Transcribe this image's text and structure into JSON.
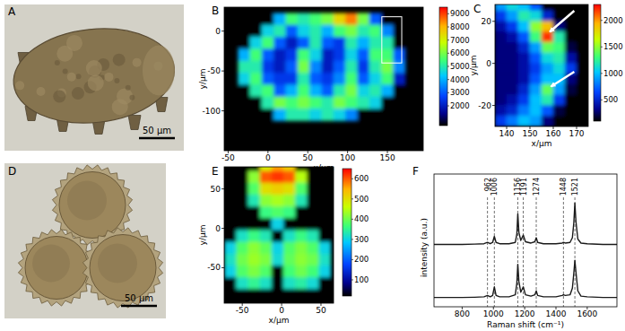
{
  "chart_data": [
    {
      "type": "photo",
      "panel_label": "A",
      "scale_bar_label": "50 μm"
    },
    {
      "type": "heatmap",
      "panel_label": "B",
      "x_label": "x/μm",
      "y_label": "y/μm",
      "xlim": [
        -55,
        195
      ],
      "ylim": [
        -150,
        30
      ],
      "xticks": [
        -50,
        0,
        50,
        100,
        150
      ],
      "yticks": [
        -100,
        -50,
        0
      ],
      "x": [
        -30,
        -15,
        0,
        15,
        30,
        45,
        60,
        75,
        90,
        105,
        120,
        135,
        150,
        165
      ],
      "y": [
        15,
        0,
        -15,
        -30,
        -45,
        -60,
        -75,
        -90,
        -105
      ],
      "z": [
        [
          500,
          500,
          500,
          4000,
          5500,
          5000,
          5500,
          6000,
          7500,
          8500,
          6000,
          3000,
          500,
          500
        ],
        [
          500,
          500,
          4500,
          5000,
          3000,
          4500,
          5000,
          4000,
          5500,
          6000,
          5000,
          5500,
          3500,
          500
        ],
        [
          500,
          4500,
          5500,
          3000,
          2000,
          3000,
          5000,
          3000,
          2500,
          5000,
          4000,
          5000,
          5000,
          500
        ],
        [
          4000,
          5500,
          3000,
          2000,
          2500,
          5500,
          4500,
          2000,
          2500,
          4500,
          3000,
          5500,
          5500,
          3000
        ],
        [
          5000,
          5000,
          2500,
          2000,
          3000,
          6000,
          3500,
          2000,
          3000,
          5000,
          2500,
          5000,
          6000,
          3500
        ],
        [
          4500,
          5500,
          3000,
          2500,
          2500,
          5000,
          3000,
          2500,
          3500,
          5500,
          3000,
          4500,
          5500,
          2000
        ],
        [
          500,
          5000,
          5500,
          3000,
          4000,
          5500,
          4000,
          3000,
          5000,
          6000,
          4500,
          5000,
          4000,
          500
        ],
        [
          500,
          500,
          5000,
          6000,
          5500,
          6000,
          5500,
          5000,
          6000,
          5500,
          5000,
          4500,
          500,
          500
        ],
        [
          500,
          500,
          500,
          4000,
          5000,
          5000,
          4500,
          5000,
          4500,
          3500,
          500,
          500,
          500,
          500
        ]
      ],
      "colorbar": {
        "range": [
          500,
          9500
        ],
        "ticks": [
          2000,
          3000,
          4000,
          5000,
          6000,
          7000,
          8000,
          9000
        ]
      },
      "zoom_box": {
        "x": [
          143,
          168
        ],
        "y": [
          -40,
          18
        ]
      }
    },
    {
      "type": "heatmap",
      "panel_label": "C",
      "x_label": "x/μm",
      "y_label": "y/μm",
      "xlim": [
        135,
        175
      ],
      "ylim": [
        -30,
        28
      ],
      "xticks": [
        140,
        150,
        160,
        170
      ],
      "yticks": [
        -20,
        0,
        20
      ],
      "x": [
        137.5,
        142.5,
        147.5,
        152.5,
        157.5,
        162.5,
        167.5,
        172.5
      ],
      "y": [
        27.5,
        22.5,
        17.5,
        12.5,
        7.5,
        2.5,
        -2.5,
        -7.5,
        -12.5,
        -17.5,
        -22.5,
        -27.5
      ],
      "z": [
        [
          900,
          1100,
          1000,
          700,
          100,
          100,
          100,
          100
        ],
        [
          600,
          900,
          1200,
          1100,
          500,
          100,
          100,
          100
        ],
        [
          400,
          600,
          1000,
          1500,
          1900,
          300,
          100,
          100
        ],
        [
          300,
          400,
          700,
          1300,
          2200,
          1200,
          100,
          100
        ],
        [
          300,
          300,
          500,
          900,
          1400,
          1300,
          200,
          100
        ],
        [
          300,
          300,
          400,
          700,
          1100,
          1200,
          400,
          100
        ],
        [
          300,
          300,
          400,
          600,
          900,
          1100,
          600,
          100
        ],
        [
          300,
          300,
          400,
          700,
          1000,
          1000,
          300,
          100
        ],
        [
          300,
          300,
          500,
          900,
          1400,
          900,
          200,
          100
        ],
        [
          300,
          400,
          600,
          1000,
          1200,
          600,
          100,
          100
        ],
        [
          400,
          500,
          800,
          1000,
          700,
          200,
          100,
          100
        ],
        [
          600,
          800,
          1000,
          900,
          300,
          100,
          100,
          100
        ]
      ],
      "colorbar": {
        "range": [
          100,
          2300
        ],
        "ticks": [
          500,
          1000,
          1500,
          2000
        ]
      },
      "arrows": [
        {
          "from": [
            169,
            25
          ],
          "to": [
            158.5,
            15
          ]
        },
        {
          "from": [
            169,
            -4
          ],
          "to": [
            159,
            -11
          ]
        }
      ]
    },
    {
      "type": "photo",
      "panel_label": "D",
      "scale_bar_label": "50 μm"
    },
    {
      "type": "heatmap",
      "panel_label": "E",
      "x_label": "x/μm",
      "y_label": "y/μm",
      "xlim": [
        -73,
        66
      ],
      "ylim": [
        -95,
        78
      ],
      "xticks": [
        -50,
        0,
        50
      ],
      "yticks": [
        -50,
        0,
        50
      ],
      "x": [
        -65,
        -50,
        -35,
        -20,
        -5,
        10,
        25,
        40,
        55
      ],
      "y": [
        80,
        65,
        50,
        35,
        20,
        5,
        -10,
        -25,
        -40,
        -55,
        -70,
        -85
      ],
      "z": [
        [
          20,
          20,
          20,
          480,
          560,
          520,
          20,
          20,
          20
        ],
        [
          20,
          20,
          420,
          600,
          620,
          600,
          450,
          20,
          20
        ],
        [
          20,
          20,
          380,
          500,
          520,
          500,
          380,
          20,
          20
        ],
        [
          20,
          20,
          330,
          420,
          440,
          420,
          330,
          20,
          20
        ],
        [
          20,
          20,
          20,
          360,
          380,
          360,
          20,
          20,
          20
        ],
        [
          20,
          20,
          20,
          20,
          300,
          20,
          20,
          20,
          20
        ],
        [
          20,
          320,
          360,
          330,
          20,
          320,
          360,
          330,
          20
        ],
        [
          300,
          380,
          420,
          390,
          300,
          380,
          410,
          380,
          300
        ],
        [
          320,
          400,
          430,
          410,
          310,
          390,
          420,
          400,
          320
        ],
        [
          300,
          380,
          410,
          380,
          20,
          370,
          400,
          370,
          300
        ],
        [
          20,
          320,
          350,
          320,
          20,
          320,
          340,
          310,
          20
        ],
        [
          20,
          20,
          20,
          20,
          20,
          20,
          20,
          20,
          20
        ]
      ],
      "colorbar": {
        "range": [
          20,
          650
        ],
        "ticks": [
          100,
          200,
          300,
          400,
          500,
          600
        ]
      }
    },
    {
      "type": "line",
      "panel_label": "F",
      "x_label": "Raman shift (cm⁻¹)",
      "y_label": "intensity (a.u.)",
      "xlim": [
        620,
        1790
      ],
      "ylim": [
        0,
        10
      ],
      "xticks": [
        800,
        1000,
        1200,
        1400,
        1600
      ],
      "tick_labels": "x",
      "x": [
        620,
        700,
        800,
        880,
        940,
        962,
        980,
        995,
        1006,
        1017,
        1040,
        1100,
        1140,
        1150,
        1156,
        1163,
        1175,
        1191,
        1205,
        1240,
        1265,
        1274,
        1283,
        1320,
        1400,
        1440,
        1448,
        1460,
        1490,
        1505,
        1514,
        1521,
        1528,
        1540,
        1560,
        1600,
        1700,
        1790
      ],
      "series": [
        {
          "color": "#1a1a1a",
          "values": [
            4.7,
            4.7,
            4.7,
            4.72,
            4.75,
            4.85,
            4.75,
            4.85,
            5.3,
            4.85,
            4.75,
            4.75,
            4.85,
            5.5,
            7.0,
            5.6,
            5.0,
            5.4,
            4.9,
            4.8,
            4.9,
            5.2,
            4.85,
            4.75,
            4.75,
            4.8,
            4.85,
            4.8,
            4.85,
            5.2,
            6.3,
            7.8,
            6.4,
            5.1,
            4.8,
            4.75,
            4.7,
            4.7
          ]
        },
        {
          "color": "#1a1a1a",
          "values": [
            0.7,
            0.7,
            0.7,
            0.72,
            0.75,
            0.85,
            0.75,
            0.85,
            1.5,
            0.85,
            0.75,
            0.75,
            0.9,
            1.8,
            3.2,
            1.9,
            1.1,
            1.5,
            0.9,
            0.8,
            0.9,
            1.2,
            0.85,
            0.75,
            0.75,
            0.85,
            0.9,
            0.85,
            0.9,
            1.4,
            2.5,
            3.5,
            2.6,
            1.2,
            0.8,
            0.75,
            0.7,
            0.7
          ]
        }
      ],
      "peaks": [
        962,
        1006,
        1156,
        1191,
        1274,
        1448,
        1521
      ]
    }
  ]
}
